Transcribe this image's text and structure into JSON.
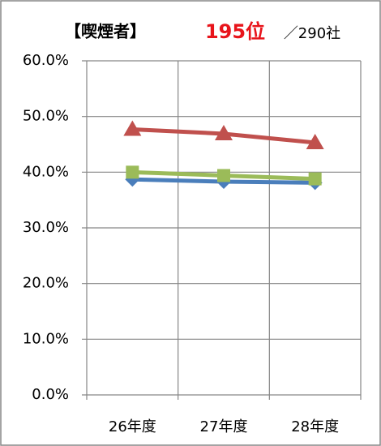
{
  "chart_data": {
    "type": "line",
    "title": "【喫煙者】",
    "rank": "195位",
    "total": "／290社",
    "categories": [
      "26年度",
      "27年度",
      "28年度"
    ],
    "series": [
      {
        "color": "#4a7ebb",
        "marker": "diamond",
        "values": [
          38.7,
          38.3,
          38.1
        ]
      },
      {
        "color": "#9bbb59",
        "marker": "square",
        "values": [
          40.0,
          39.4,
          38.8
        ]
      },
      {
        "color": "#c0504d",
        "marker": "triangle",
        "values": [
          47.7,
          46.9,
          45.3
        ]
      }
    ],
    "ylim": [
      0,
      60
    ],
    "yticks": [
      {
        "value": 0,
        "label": "0.0%"
      },
      {
        "value": 10,
        "label": "10.0%"
      },
      {
        "value": 20,
        "label": "20.0%"
      },
      {
        "value": 30,
        "label": "30.0%"
      },
      {
        "value": 40,
        "label": "40.0%"
      },
      {
        "value": 50,
        "label": "50.0%"
      },
      {
        "value": 60,
        "label": "60.0%"
      }
    ],
    "grid": true
  }
}
